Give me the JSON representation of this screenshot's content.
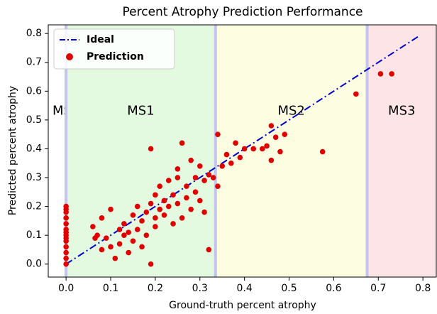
{
  "chart_data": {
    "type": "scatter",
    "title": "Percent Atrophy Prediction Performance",
    "x_label": "Ground-truth percent atrophy",
    "y_label": "Predicted percent atrophy",
    "xlim": [
      -0.04,
      0.83
    ],
    "ylim": [
      -0.045,
      0.83
    ],
    "xticks": [
      {
        "value": 0,
        "label": "0.0"
      },
      0.1,
      0.2,
      0.3,
      0.4,
      0.5,
      0.6,
      0.7,
      0.8
    ],
    "yticks": [
      {
        "value": 0,
        "label": "0.0"
      },
      0.1,
      0.2,
      0.3,
      0.4,
      0.5,
      0.6,
      0.7,
      0.8
    ],
    "regions": [
      {
        "label": "MS0",
        "start": 0,
        "end": 0,
        "color": "#ffffff"
      },
      {
        "label": "MS1",
        "start": 0,
        "end": 0.335,
        "color": "#e4fae0"
      },
      {
        "label": "MS2",
        "start": 0.335,
        "end": 0.675,
        "color": "#fdfde2"
      },
      {
        "label": "MS3",
        "start": 0.675,
        "end": 0.83,
        "color": "#fde4e6"
      }
    ],
    "legend": "upper left",
    "series": [
      {
        "name": "Ideal",
        "color": "#0000cc",
        "kind": "line",
        "x": [
          0,
          0.79
        ],
        "values": [
          0,
          0.79
        ]
      },
      {
        "name": "Prediction",
        "color": "#e00000",
        "kind": "points",
        "x": [
          0,
          0,
          0,
          0,
          0,
          0,
          0,
          0,
          0,
          0,
          0,
          0,
          0,
          0,
          0.06,
          0.065,
          0.07,
          0.08,
          0.08,
          0.09,
          0.1,
          0.1,
          0.11,
          0.12,
          0.12,
          0.13,
          0.13,
          0.14,
          0.14,
          0.15,
          0.15,
          0.16,
          0.16,
          0.17,
          0.17,
          0.18,
          0.18,
          0.19,
          0.19,
          0.19,
          0.2,
          0.2,
          0.2,
          0.21,
          0.21,
          0.22,
          0.22,
          0.23,
          0.23,
          0.24,
          0.24,
          0.25,
          0.25,
          0.25,
          0.26,
          0.26,
          0.27,
          0.27,
          0.28,
          0.28,
          0.29,
          0.29,
          0.3,
          0.3,
          0.31,
          0.31,
          0.32,
          0.32,
          0.33,
          0.34,
          0.34,
          0.35,
          0.36,
          0.37,
          0.38,
          0.39,
          0.4,
          0.42,
          0.44,
          0.45,
          0.46,
          0.46,
          0.47,
          0.48,
          0.49,
          0.575,
          0.65,
          0.705,
          0.73
        ],
        "values": [
          0.2,
          0.18,
          0.16,
          0.14,
          0.12,
          0.1,
          0.08,
          0.06,
          0.04,
          0.02,
          0.0,
          0.19,
          0.11,
          0.09,
          0.13,
          0.09,
          0.1,
          0.16,
          0.05,
          0.09,
          0.19,
          0.06,
          0.02,
          0.12,
          0.07,
          0.1,
          0.14,
          0.11,
          0.04,
          0.17,
          0.08,
          0.12,
          0.2,
          0.06,
          0.15,
          0.18,
          0.1,
          0.4,
          0.0,
          0.21,
          0.16,
          0.24,
          0.13,
          0.19,
          0.27,
          0.22,
          0.17,
          0.29,
          0.2,
          0.24,
          0.14,
          0.33,
          0.21,
          0.3,
          0.42,
          0.16,
          0.23,
          0.27,
          0.36,
          0.19,
          0.25,
          0.3,
          0.22,
          0.34,
          0.29,
          0.18,
          0.05,
          0.31,
          0.3,
          0.45,
          0.27,
          0.34,
          0.38,
          0.35,
          0.42,
          0.37,
          0.4,
          0.4,
          0.4,
          0.41,
          0.48,
          0.36,
          0.44,
          0.39,
          0.45,
          0.39,
          0.59,
          0.66,
          0.66
        ]
      }
    ]
  }
}
